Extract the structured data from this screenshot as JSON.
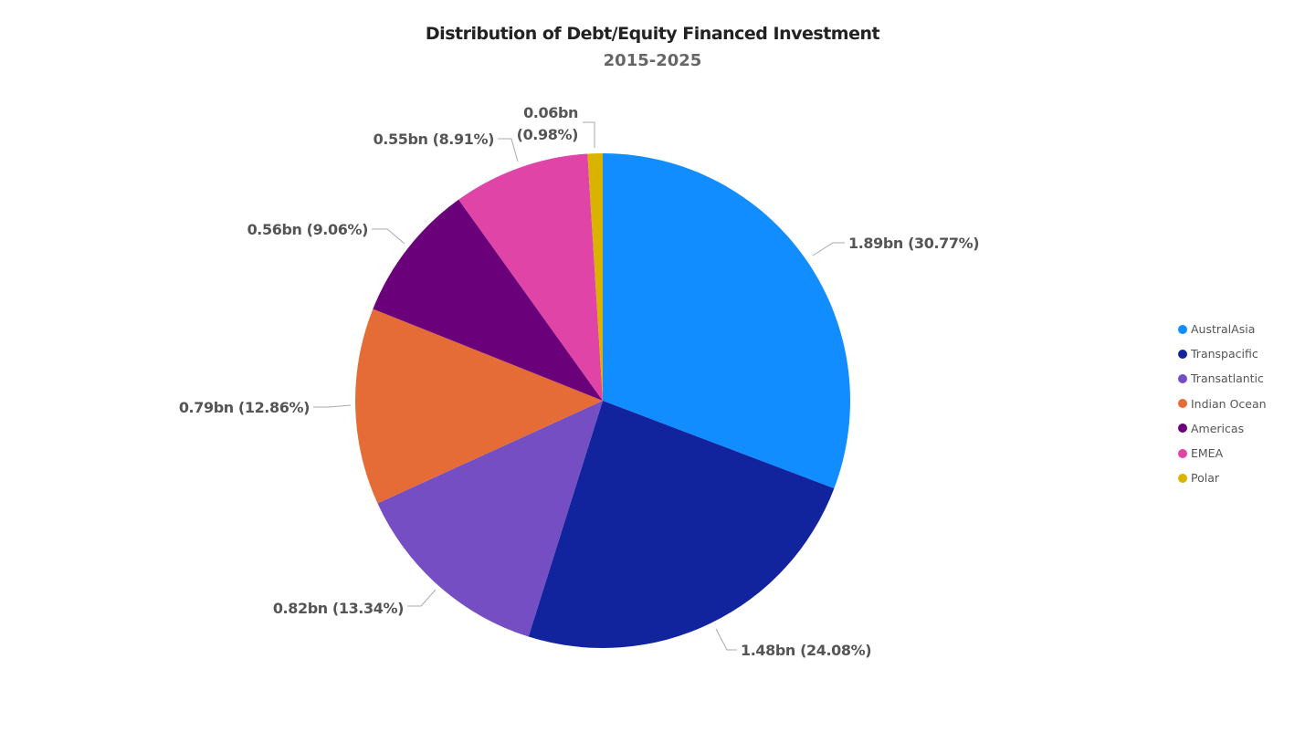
{
  "chart_data": {
    "type": "pie",
    "title": "Distribution of Debt/Equity Financed Investment",
    "subtitle": "2015-2025",
    "legend_position": "right",
    "slices": [
      {
        "name": "AustralAsia",
        "value": 1.89,
        "percent": 30.77,
        "label": "1.89bn (30.77%)",
        "color": "#118DFF"
      },
      {
        "name": "Transpacific",
        "value": 1.48,
        "percent": 24.08,
        "label": "1.48bn (24.08%)",
        "color": "#12239E"
      },
      {
        "name": "Transatlantic",
        "value": 0.82,
        "percent": 13.34,
        "label": "0.82bn (13.34%)",
        "color": "#744EC2"
      },
      {
        "name": "Indian Ocean",
        "value": 0.79,
        "percent": 12.86,
        "label": "0.79bn (12.86%)",
        "color": "#E66C37"
      },
      {
        "name": "Americas",
        "value": 0.56,
        "percent": 9.06,
        "label": "0.56bn (9.06%)",
        "color": "#6B007B"
      },
      {
        "name": "EMEA",
        "value": 0.55,
        "percent": 8.91,
        "label": "0.55bn (8.91%)",
        "color": "#E044A7"
      },
      {
        "name": "Polar",
        "value": 0.06,
        "percent": 0.98,
        "label": "0.06bn (0.98%)",
        "label_lines": [
          "0.06bn",
          "(0.98%)"
        ],
        "color": "#D9B300"
      }
    ]
  }
}
